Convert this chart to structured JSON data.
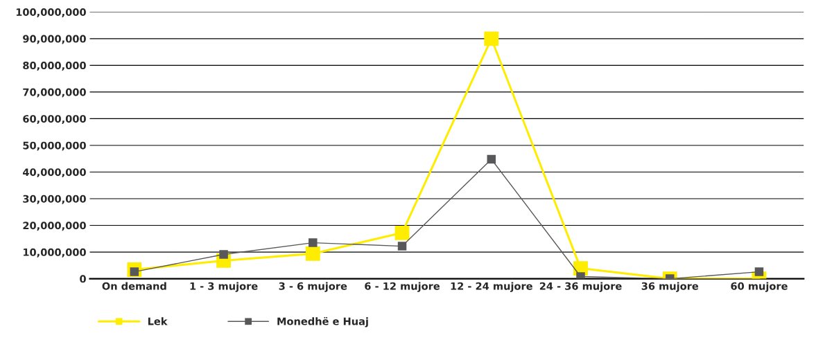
{
  "chart_data": {
    "type": "line",
    "categories": [
      "On demand",
      "1 - 3 mujore",
      "3 - 6 mujore",
      "6 - 12 mujore",
      "12 - 24 mujore",
      "24 - 36 mujore",
      "36 mujore",
      "60 mujore"
    ],
    "series": [
      {
        "name": "Lek",
        "color": "#ffed00",
        "values": [
          3400000,
          6800000,
          9400000,
          17200000,
          90000000,
          3900000,
          0,
          0
        ]
      },
      {
        "name": "Monedhë e Huaj",
        "color": "#58585a",
        "values": [
          2600000,
          9100000,
          13500000,
          12200000,
          44800000,
          800000,
          0,
          2600000
        ]
      }
    ],
    "ylim": [
      0,
      100000000
    ],
    "yticks": [
      0,
      {
        "value": 10000000,
        "label": "10,000,000"
      },
      {
        "value": 20000000,
        "label": "20,000,000"
      },
      {
        "value": 30000000,
        "label": "30,000,000"
      },
      {
        "value": 40000000,
        "label": "40,000,000"
      },
      {
        "value": 50000000,
        "label": "50,000,000"
      },
      {
        "value": 60000000,
        "label": "60,000,000"
      },
      {
        "value": 70000000,
        "label": "70,000,000"
      },
      {
        "value": 80000000,
        "label": "80,000,000"
      },
      {
        "value": 90000000,
        "label": "90,000,000"
      },
      {
        "value": 100000000,
        "label": "100,000,000"
      }
    ],
    "grid": "y",
    "legend": "bottom left",
    "marker": "square",
    "line_style": "solid"
  }
}
